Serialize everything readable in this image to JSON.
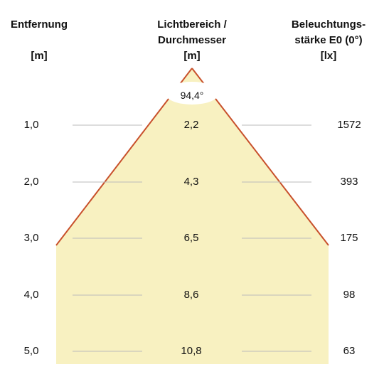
{
  "header": {
    "left": {
      "line1": "Entfernung",
      "unit": "[m]"
    },
    "middle": {
      "line1": "Lichtbereich /",
      "line2": "Durchmesser",
      "unit": "[m]"
    },
    "right": {
      "line1": "Beleuchtungs-",
      "line2": "stärke E0 (0°)",
      "unit": "[lx]"
    }
  },
  "beam_angle": "94,4°",
  "rows": [
    {
      "distance": "1,0",
      "diameter": "2,2",
      "illuminance": "1572"
    },
    {
      "distance": "2,0",
      "diameter": "4,3",
      "illuminance": "393"
    },
    {
      "distance": "3,0",
      "diameter": "6,5",
      "illuminance": "175"
    },
    {
      "distance": "4,0",
      "diameter": "8,6",
      "illuminance": "98"
    },
    {
      "distance": "5,0",
      "diameter": "10,8",
      "illuminance": "63"
    }
  ],
  "colors": {
    "beam_fill": "#f8f1c1",
    "beam_edge": "#c8502b",
    "grid_line": "#bbbbbb"
  }
}
